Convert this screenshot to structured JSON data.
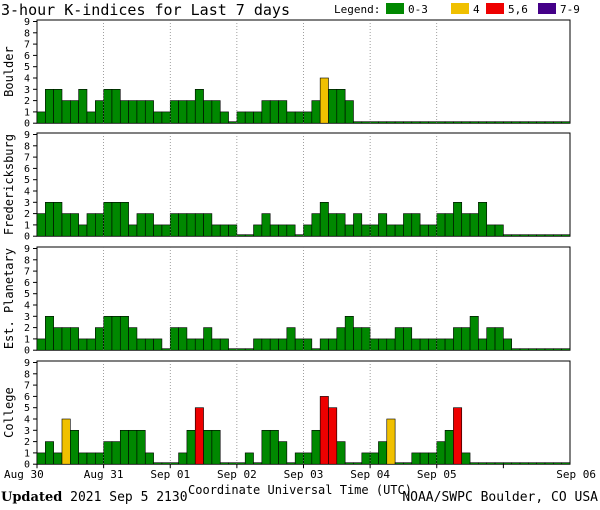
{
  "title": "3-hour K-indices for Last 7 days",
  "legend": {
    "label": "Legend:",
    "items": [
      {
        "label": "0-3",
        "color": "#008800"
      },
      {
        "label": "4",
        "color": "#f0c000"
      },
      {
        "label": "5,6",
        "color": "#ee0000"
      },
      {
        "label": "7-9",
        "color": "#440088"
      }
    ]
  },
  "footer": {
    "updated_label": "Updated",
    "updated_value": "2021 Sep  5 2130",
    "credit": "NOAA/SWPC Boulder, CO USA"
  },
  "chart_data": {
    "type": "bar",
    "title": "3-hour K-indices for Last 7 days",
    "xlabel": "Coordinate Universal Time (UTC)",
    "x_tick_labels": [
      "Aug 30",
      "Aug 31",
      "Sep 01",
      "Sep 02",
      "Sep 03",
      "Sep 04",
      "Sep 05",
      "Sep 06"
    ],
    "ylim": [
      0,
      9
    ],
    "y_tick_labels": [
      "0",
      "1",
      "2",
      "3",
      "4",
      "5",
      "6",
      "7",
      "8",
      "9"
    ],
    "bins_per_day": 8,
    "color_scale": [
      {
        "range": "0-3",
        "color": "#008800"
      },
      {
        "range": "4",
        "color": "#f0c000"
      },
      {
        "range": "5,6",
        "color": "#ee0000"
      },
      {
        "range": "7-9",
        "color": "#440088"
      }
    ],
    "panels": [
      {
        "name": "Boulder",
        "values": [
          1,
          3,
          3,
          2,
          2,
          3,
          1,
          2,
          3,
          3,
          2,
          2,
          2,
          2,
          1,
          1,
          2,
          2,
          2,
          3,
          2,
          2,
          1,
          0,
          1,
          1,
          1,
          2,
          2,
          2,
          1,
          1,
          1,
          2,
          4,
          3,
          3,
          2,
          0,
          0,
          0,
          0,
          0,
          0,
          0,
          0,
          0,
          0,
          0,
          0,
          0,
          0,
          0,
          0,
          0,
          0,
          0,
          0,
          0,
          0,
          0,
          0,
          0,
          0
        ]
      },
      {
        "name": "Fredericksburg",
        "values": [
          2,
          3,
          3,
          2,
          2,
          1,
          2,
          2,
          3,
          3,
          3,
          1,
          2,
          2,
          1,
          1,
          2,
          2,
          2,
          2,
          2,
          1,
          1,
          1,
          0,
          0,
          1,
          2,
          1,
          1,
          1,
          0,
          1,
          2,
          3,
          2,
          2,
          1,
          2,
          1,
          1,
          2,
          1,
          1,
          2,
          2,
          1,
          1,
          2,
          2,
          3,
          2,
          2,
          3,
          1,
          1,
          0,
          0,
          0,
          0,
          0,
          0,
          0,
          0
        ]
      },
      {
        "name": "Est. Planetary",
        "values": [
          1,
          3,
          2,
          2,
          2,
          1,
          1,
          2,
          3,
          3,
          3,
          2,
          1,
          1,
          1,
          0,
          2,
          2,
          1,
          1,
          2,
          1,
          1,
          0,
          0,
          0,
          1,
          1,
          1,
          1,
          2,
          1,
          1,
          0,
          1,
          1,
          2,
          3,
          2,
          2,
          1,
          1,
          1,
          2,
          2,
          1,
          1,
          1,
          1,
          1,
          2,
          2,
          3,
          1,
          2,
          2,
          1,
          0,
          0,
          0,
          0,
          0,
          0,
          0
        ]
      },
      {
        "name": "College",
        "values": [
          1,
          2,
          1,
          4,
          3,
          1,
          1,
          1,
          2,
          2,
          3,
          3,
          3,
          1,
          0,
          0,
          0,
          1,
          3,
          5,
          3,
          3,
          0,
          0,
          0,
          1,
          0,
          3,
          3,
          2,
          0,
          1,
          1,
          3,
          6,
          5,
          2,
          0,
          0,
          1,
          1,
          2,
          4,
          0,
          0,
          1,
          1,
          1,
          2,
          3,
          5,
          1,
          0,
          0,
          0,
          0,
          0,
          0,
          0,
          0,
          0,
          0,
          0,
          0
        ]
      }
    ]
  }
}
